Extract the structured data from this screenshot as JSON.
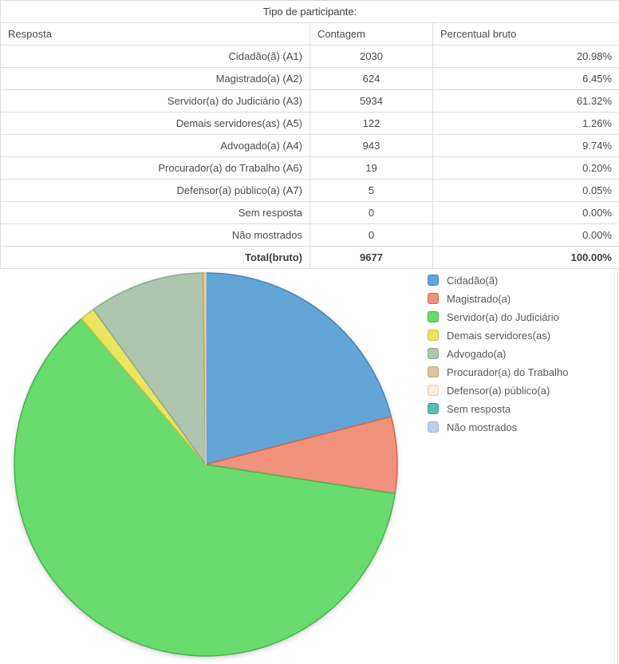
{
  "table": {
    "title": "Tipo de participante:",
    "columns": [
      "Resposta",
      "Contagem",
      "Percentual bruto"
    ],
    "rows": [
      {
        "resposta": "Cidadão(ã) (A1)",
        "contagem": "2030",
        "percentual": "20.98%",
        "is_total": false
      },
      {
        "resposta": "Magistrado(a) (A2)",
        "contagem": "624",
        "percentual": "6.45%",
        "is_total": false
      },
      {
        "resposta": "Servidor(a) do Judiciário (A3)",
        "contagem": "5934",
        "percentual": "61.32%",
        "is_total": false
      },
      {
        "resposta": "Demais servidores(as) (A5)",
        "contagem": "122",
        "percentual": "1.26%",
        "is_total": false
      },
      {
        "resposta": "Advogado(a) (A4)",
        "contagem": "943",
        "percentual": "9.74%",
        "is_total": false
      },
      {
        "resposta": "Procurador(a) do Trabalho (A6)",
        "contagem": "19",
        "percentual": "0.20%",
        "is_total": false
      },
      {
        "resposta": "Defensor(a) público(a) (A7)",
        "contagem": "5",
        "percentual": "0.05%",
        "is_total": false
      },
      {
        "resposta": "Sem resposta",
        "contagem": "0",
        "percentual": "0.00%",
        "is_total": false
      },
      {
        "resposta": "Não mostrados",
        "contagem": "0",
        "percentual": "0.00%",
        "is_total": false
      },
      {
        "resposta": "Total(bruto)",
        "contagem": "9677",
        "percentual": "100.00%",
        "is_total": true
      }
    ]
  },
  "chart_data": {
    "type": "pie",
    "title": "Tipo de participante:",
    "labels": [
      "Cidadão(ã)",
      "Magistrado(a)",
      "Servidor(a) do Judiciário",
      "Demais servidores(as)",
      "Advogado(a)",
      "Procurador(a) do Trabalho",
      "Defensor(a) público(a)",
      "Sem resposta",
      "Não mostrados"
    ],
    "values_percent": [
      20.98,
      6.45,
      61.32,
      1.26,
      9.74,
      0.2,
      0.05,
      0.0,
      0.0
    ],
    "counts": [
      2030,
      624,
      5934,
      122,
      943,
      19,
      5,
      0,
      0
    ],
    "colors": [
      "#64a5d8",
      "#f0917b",
      "#69da6e",
      "#eae45f",
      "#afc5b0",
      "#dcc59c",
      "#faecde",
      "#5abdaf",
      "#bccfe5"
    ],
    "border_colors": [
      "#4784be",
      "#d4684c",
      "#48b34e",
      "#c9c23e",
      "#8fa890",
      "#c0a878",
      "#e3cdb5",
      "#3f9e90",
      "#9db4ce"
    ],
    "legend_position": "right",
    "start_angle_deg": -90,
    "direction": "clockwise"
  }
}
